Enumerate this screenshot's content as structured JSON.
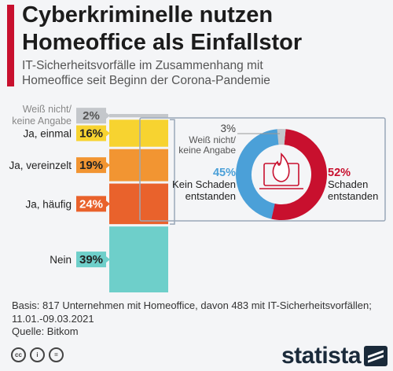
{
  "header": {
    "title_line1": "Cyberkriminelle nutzen",
    "title_line2": "Homeoffice als Einfallstor",
    "subtitle_line1": "IT-Sicherheitsvorfälle im Zusammenhang mit",
    "subtitle_line2": "Homeoffice seit Beginn der Corona-Pandemie",
    "accent_color": "#c8102e"
  },
  "chart_data": [
    {
      "type": "bar",
      "orientation": "stacked-vertical",
      "categories": [
        "Weiß nicht/ keine Angabe",
        "Ja, einmal",
        "Ja, vereinzelt",
        "Ja, häufig",
        "Nein"
      ],
      "values": [
        2,
        16,
        19,
        24,
        39
      ],
      "value_labels": [
        "2%",
        "16%",
        "19%",
        "24%",
        "39%"
      ],
      "colors": [
        "#c4c7cb",
        "#f7d330",
        "#f29532",
        "#e9622c",
        "#6ecfca"
      ]
    },
    {
      "type": "pie",
      "variant": "donut",
      "categories": [
        "Schaden entstanden",
        "Kein Schaden entstanden",
        "Weiß nicht/ keine Angabe"
      ],
      "values": [
        52,
        45,
        3
      ],
      "value_labels": [
        "52%",
        "45%",
        "3%"
      ],
      "colors": [
        "#c8102e",
        "#4ba0d8",
        "#c4c7cb"
      ]
    }
  ],
  "footer": {
    "basis_line1": "Basis: 817 Unternehmen mit Homeoffice, davon 483 mit IT-Sicherheitsvorfällen;",
    "basis_line2": "11.01.-09.03.2021",
    "source": "Quelle: Bitkom"
  },
  "license_icons": [
    "cc-icon",
    "info-icon",
    "equal-icon"
  ],
  "license_labels": [
    "cc",
    "i",
    "="
  ],
  "brand": {
    "name": "statista"
  }
}
